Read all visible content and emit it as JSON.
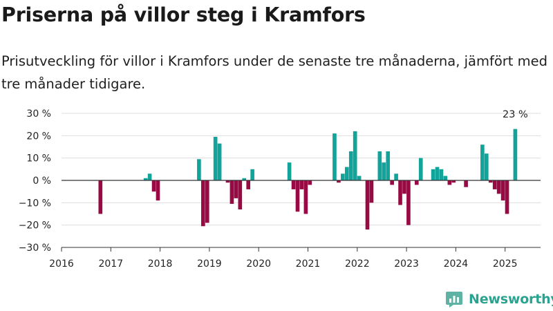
{
  "title": "Priserna på villor steg i Kramfors",
  "subtitle": "Prisutveckling för villor i Kramfors under de senaste tre månaderna, jämfört med tre månader tidigare.",
  "brand": {
    "name": "Newsworthy",
    "color": "#2aa391"
  },
  "colors": {
    "positive": "#12a39a",
    "negative": "#980a44",
    "zero_line": "#333333",
    "grid": "#dddddd"
  },
  "chart_data": {
    "type": "bar",
    "title": "Priserna på villor steg i Kramfors",
    "subtitle": "Prisutveckling för villor i Kramfors under de senaste tre månaderna, jämfört med tre månader tidigare.",
    "xlabel": "",
    "ylabel": "",
    "xlim": [
      "2016-01",
      "2025-08"
    ],
    "ylim": [
      -30,
      30
    ],
    "y_ticks": [
      30,
      20,
      10,
      0,
      -10,
      -20,
      -30
    ],
    "y_tick_labels": [
      "30 %",
      "20 %",
      "10 %",
      "0 %",
      "−10 %",
      "−20 %",
      "−30 %"
    ],
    "x_tick_labels": [
      "2016",
      "2017",
      "2018",
      "2019",
      "2020",
      "2021",
      "2022",
      "2023",
      "2024",
      "2025"
    ],
    "grid": true,
    "last_value_label": "23 %",
    "series": [
      {
        "values": [
          {
            "x": "2016-10",
            "y": -15
          },
          {
            "x": "2017-09",
            "y": 1
          },
          {
            "x": "2017-10",
            "y": 3
          },
          {
            "x": "2017-11",
            "y": -5
          },
          {
            "x": "2017-12",
            "y": -9
          },
          {
            "x": "2018-10",
            "y": 9.5
          },
          {
            "x": "2018-11",
            "y": -20.5
          },
          {
            "x": "2018-12",
            "y": -19
          },
          {
            "x": "2019-02",
            "y": 19.5
          },
          {
            "x": "2019-03",
            "y": 16.5
          },
          {
            "x": "2019-05",
            "y": -1
          },
          {
            "x": "2019-06",
            "y": -10.5
          },
          {
            "x": "2019-07",
            "y": -8
          },
          {
            "x": "2019-08",
            "y": -13
          },
          {
            "x": "2019-09",
            "y": 1
          },
          {
            "x": "2019-10",
            "y": -4
          },
          {
            "x": "2019-11",
            "y": 5
          },
          {
            "x": "2020-08",
            "y": 8
          },
          {
            "x": "2020-09",
            "y": -4
          },
          {
            "x": "2020-10",
            "y": -14
          },
          {
            "x": "2020-11",
            "y": -4
          },
          {
            "x": "2020-12",
            "y": -15
          },
          {
            "x": "2021-01",
            "y": -2
          },
          {
            "x": "2021-07",
            "y": 21
          },
          {
            "x": "2021-08",
            "y": -1
          },
          {
            "x": "2021-09",
            "y": 3
          },
          {
            "x": "2021-10",
            "y": 6
          },
          {
            "x": "2021-11",
            "y": 13
          },
          {
            "x": "2021-12",
            "y": 22
          },
          {
            "x": "2022-01",
            "y": 2
          },
          {
            "x": "2022-03",
            "y": -22
          },
          {
            "x": "2022-04",
            "y": -10
          },
          {
            "x": "2022-06",
            "y": 13
          },
          {
            "x": "2022-07",
            "y": 8
          },
          {
            "x": "2022-08",
            "y": 13
          },
          {
            "x": "2022-09",
            "y": -2
          },
          {
            "x": "2022-10",
            "y": 3
          },
          {
            "x": "2022-11",
            "y": -11
          },
          {
            "x": "2022-12",
            "y": -6
          },
          {
            "x": "2023-01",
            "y": -20
          },
          {
            "x": "2023-03",
            "y": -2
          },
          {
            "x": "2023-04",
            "y": 10
          },
          {
            "x": "2023-07",
            "y": 5
          },
          {
            "x": "2023-08",
            "y": 6
          },
          {
            "x": "2023-09",
            "y": 5
          },
          {
            "x": "2023-10",
            "y": 2
          },
          {
            "x": "2023-11",
            "y": -2
          },
          {
            "x": "2023-12",
            "y": -1
          },
          {
            "x": "2024-03",
            "y": -3
          },
          {
            "x": "2024-07",
            "y": 16
          },
          {
            "x": "2024-08",
            "y": 12
          },
          {
            "x": "2024-09",
            "y": -1
          },
          {
            "x": "2024-10",
            "y": -4
          },
          {
            "x": "2024-11",
            "y": -6
          },
          {
            "x": "2024-12",
            "y": -9
          },
          {
            "x": "2025-01",
            "y": -15
          },
          {
            "x": "2025-03",
            "y": 23
          }
        ]
      }
    ]
  }
}
